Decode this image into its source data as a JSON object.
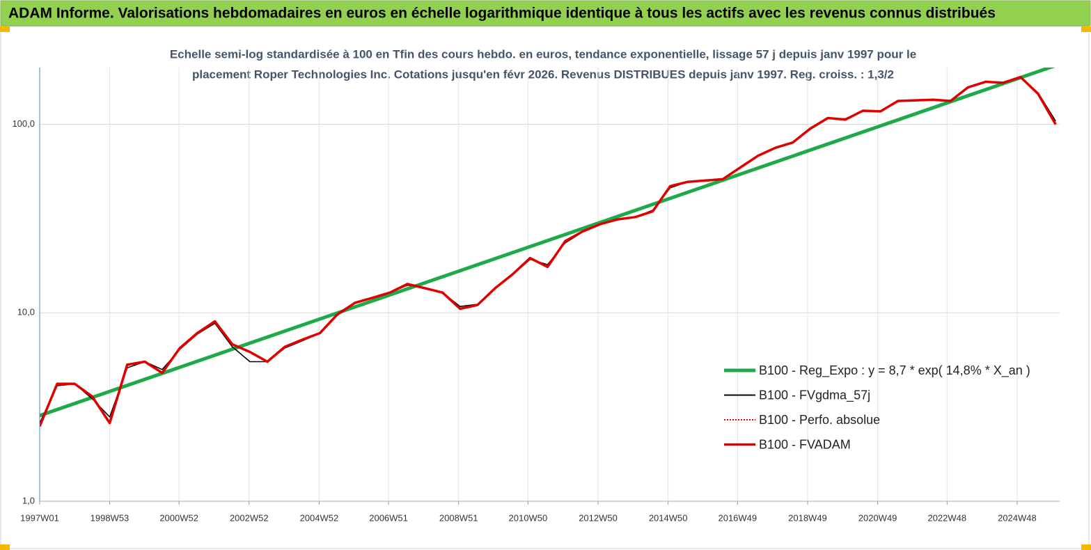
{
  "chart_data": {
    "type": "line",
    "header": "ADAM Informe. Valorisations hebdomadaires en euros en échelle logarithmique identique à tous les actifs avec les revenus connus distribués",
    "title": [
      "Echelle semi-log standardisée à 100 en Tfin des cours hebdo. en euros, tendance exponentielle, lissage 57 j depuis janv 1997 pour le",
      "placement Roper Technologies Inc. Cotations jusqu'en févr 2026. Revenus DISTRIBUES depuis janv 1997. Reg. croiss. : 1,3/2"
    ],
    "x": [
      "1997W01",
      "1997W27",
      "1998W01",
      "1998W27",
      "1999W01",
      "1999W27",
      "2000W01",
      "2000W27",
      "2001W01",
      "2001W27",
      "2002W01",
      "2002W27",
      "2003W01",
      "2003W27",
      "2004W01",
      "2004W27",
      "2005W01",
      "2005W27",
      "2006W01",
      "2006W27",
      "2007W01",
      "2007W27",
      "2008W01",
      "2008W27",
      "2009W01",
      "2009W27",
      "2010W01",
      "2010W27",
      "2011W01",
      "2011W27",
      "2012W01",
      "2012W27",
      "2013W01",
      "2013W27",
      "2014W01",
      "2014W27",
      "2015W01",
      "2015W27",
      "2016W01",
      "2016W27",
      "2017W01",
      "2017W27",
      "2018W01",
      "2018W27",
      "2019W01",
      "2019W27",
      "2020W01",
      "2020W27",
      "2021W01",
      "2021W27",
      "2022W01",
      "2022W27",
      "2023W01",
      "2023W27",
      "2024W01",
      "2024W27",
      "2025W01",
      "2025W27",
      "2026W01"
    ],
    "xlim": [
      "1997W01",
      "2026W07"
    ],
    "xticks": [
      "1997W01",
      "1998W53",
      "2000W52",
      "2002W52",
      "2004W52",
      "2006W51",
      "2008W51",
      "2010W50",
      "2012W50",
      "2014W50",
      "2016W49",
      "2018W49",
      "2020W49",
      "2022W48",
      "2024W48"
    ],
    "ylim": [
      1,
      200
    ],
    "yticks": [
      {
        "value": 1,
        "label": "1,0"
      },
      {
        "value": 10,
        "label": "10,0"
      },
      {
        "value": 100,
        "label": "100,0"
      }
    ],
    "log_scale": true,
    "grid": true,
    "legend": "lower right",
    "series": [
      {
        "name": "B100 - Reg_Expo : y = 8,7 * exp( 14,8% *  X_an )",
        "color": "#1faa4a",
        "linestyle": "solid",
        "x": [
          "1997W01",
          "2026W01"
        ],
        "values": [
          2.85,
          205
        ]
      },
      {
        "name": "B100 - FVgdma_57j",
        "color": "#000000",
        "linestyle": "solid",
        "values": [
          2.6,
          4.1,
          4.2,
          3.5,
          2.8,
          5.1,
          5.5,
          5.0,
          6.4,
          7.7,
          8.8,
          6.6,
          5.5,
          5.5,
          6.5,
          7.1,
          7.8,
          9.7,
          11.2,
          12.0,
          12.8,
          14.0,
          13.6,
          12.8,
          10.8,
          11.1,
          13.4,
          15.9,
          19.2,
          18.0,
          23.5,
          26.8,
          29.4,
          31.2,
          32.1,
          35.0,
          46,
          49.5,
          50.5,
          51.5,
          58.5,
          67.5,
          75,
          80,
          94,
          107,
          107,
          117,
          118,
          132,
          134,
          134,
          134,
          156,
          167,
          167,
          176,
          147,
          104
        ]
      },
      {
        "name": "B100 - Perfo. absolue",
        "color": "#e00000",
        "linestyle": "dotted",
        "values": [
          2.5,
          4.2,
          4.2,
          3.6,
          2.6,
          5.3,
          5.5,
          4.8,
          6.5,
          7.8,
          9.0,
          6.8,
          6.2,
          5.5,
          6.6,
          7.2,
          7.8,
          9.8,
          11.3,
          12.0,
          12.8,
          14.2,
          13.5,
          12.8,
          10.5,
          11.0,
          13.5,
          16.0,
          19.5,
          17.5,
          24.0,
          27.0,
          29.5,
          31.3,
          32.2,
          34.5,
          47,
          49.5,
          50.3,
          51.1,
          59,
          68,
          75,
          80,
          95,
          108,
          106,
          118,
          117,
          133,
          134,
          135,
          133,
          157,
          168,
          166,
          178,
          145,
          100
        ]
      },
      {
        "name": "B100 - FVADAM",
        "color": "#e00000",
        "linestyle": "solid",
        "values": [
          2.5,
          4.2,
          4.2,
          3.6,
          2.6,
          5.3,
          5.5,
          4.8,
          6.5,
          7.8,
          9.0,
          6.8,
          6.2,
          5.5,
          6.6,
          7.2,
          7.8,
          9.8,
          11.3,
          12.0,
          12.8,
          14.2,
          13.5,
          12.8,
          10.5,
          11.0,
          13.5,
          16.0,
          19.5,
          17.5,
          24.0,
          27.0,
          29.5,
          31.3,
          32.2,
          34.5,
          47,
          49.5,
          50.3,
          51.1,
          59,
          68,
          75,
          80,
          95,
          108,
          106,
          118,
          117,
          133,
          134,
          135,
          133,
          157,
          168,
          166,
          178,
          145,
          100
        ]
      }
    ]
  }
}
